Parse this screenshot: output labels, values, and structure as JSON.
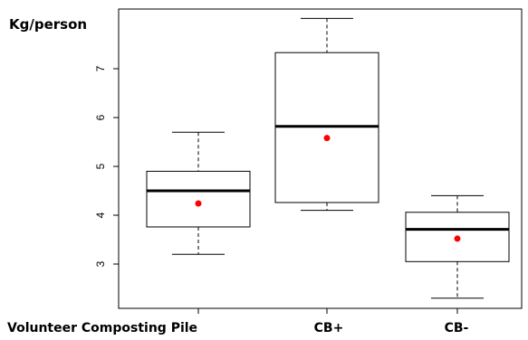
{
  "chart_data": {
    "type": "box",
    "ylabel": "Kg/person",
    "categories": [
      "Volunteer Composting Pile",
      "CB+",
      "CB-"
    ],
    "y_ticks": [
      3,
      4,
      5,
      6,
      7
    ],
    "ylim": [
      2.2,
      8.3
    ],
    "grid": false,
    "series": [
      {
        "category": "Volunteer Composting Pile",
        "min": 3.2,
        "q1": 3.76,
        "median": 4.5,
        "q3": 4.9,
        "max": 5.7,
        "mean": 4.24
      },
      {
        "category": "CB+",
        "min": 4.1,
        "q1": 4.26,
        "median": 5.82,
        "q3": 7.33,
        "max": 8.03,
        "mean": 5.58
      },
      {
        "category": "CB-",
        "min": 2.3,
        "q1": 3.05,
        "median": 3.71,
        "q3": 4.06,
        "max": 4.4,
        "mean": 3.52
      }
    ],
    "colors": {
      "box": "#000000",
      "mean_marker": "#ff0000"
    }
  }
}
